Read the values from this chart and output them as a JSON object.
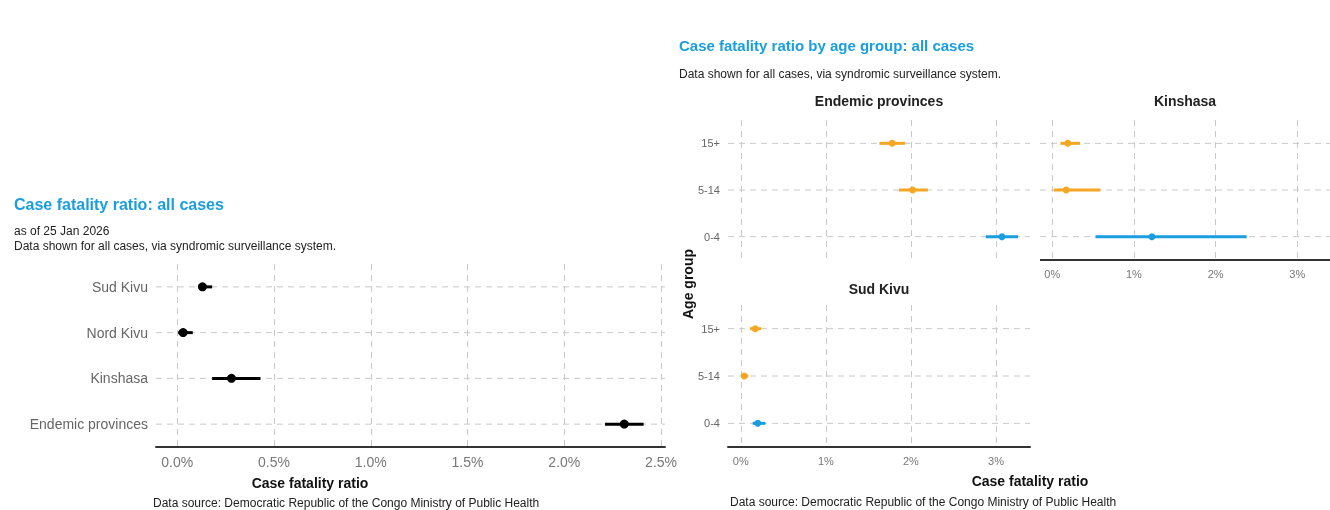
{
  "chart_data": [
    {
      "type": "scatter",
      "orientation": "horizontal",
      "title": "Case fatality ratio: all cases",
      "subtitle": "as of 25 Jan 2026\nData shown for all cases, via syndromic surveillance system.",
      "xlabel": "Case fatality ratio",
      "annotations": [
        "Data source: Democratic Republic of the Congo Ministry of Public Health"
      ],
      "categories": [
        "Sud Kivu",
        "Nord Kivu",
        "Kinshasa",
        "Endemic provinces"
      ],
      "series": [
        {
          "color": "#000000",
          "values": [
            0.13,
            0.03,
            0.28,
            2.31
          ],
          "errors": [
            [
              0.11,
              0.18
            ],
            [
              0.005,
              0.08
            ],
            [
              0.18,
              0.43
            ],
            [
              2.21,
              2.41
            ]
          ]
        }
      ],
      "xlim": [
        -0.11,
        2.52
      ],
      "xticks": [
        {
          "value": 0,
          "label": "0.0%"
        },
        {
          "value": 0.5,
          "label": "0.5%"
        },
        {
          "value": 1,
          "label": "1.0%"
        },
        {
          "value": 1.5,
          "label": "1.5%"
        },
        {
          "value": 2,
          "label": "2.0%"
        },
        {
          "value": 2.5,
          "label": "2.5%"
        }
      ],
      "grid": true,
      "marker": "circle"
    },
    {
      "type": "other",
      "title": "Case fatality ratio by age group: all cases",
      "subtitle": "Data shown for all cases, via syndromic surveillance system."
    },
    {
      "type": "scatter",
      "orientation": "horizontal",
      "title": "Endemic provinces",
      "ylabel": "Age group",
      "categories": [
        "15+",
        "5-14",
        "0-4"
      ],
      "series": [
        {
          "colors": [
            "#f5a623",
            "#f5a623",
            "#1a9ee0"
          ],
          "values": [
            1.78,
            2.02,
            3.07
          ],
          "errors": [
            [
              1.63,
              1.93
            ],
            [
              1.86,
              2.2
            ],
            [
              2.88,
              3.26
            ]
          ]
        }
      ],
      "xlim": [
        -0.15,
        3.4
      ],
      "xticks": [
        0,
        1,
        2,
        3
      ],
      "tick_labels": "y",
      "grid": true,
      "marker": "circle"
    },
    {
      "type": "scatter",
      "orientation": "horizontal",
      "title": "Kinshasa",
      "categories": [
        null,
        null,
        null
      ],
      "series": [
        {
          "colors": [
            "#f5a623",
            "#f5a623",
            "#1a9ee0"
          ],
          "values": [
            0.19,
            0.17,
            1.22
          ],
          "errors": [
            [
              0.1,
              0.34
            ],
            [
              0.02,
              0.59
            ],
            [
              0.53,
              2.38
            ]
          ]
        }
      ],
      "xlim": [
        -0.15,
        3.4
      ],
      "xticks": [
        {
          "value": 0,
          "label": "0%"
        },
        {
          "value": 1,
          "label": "1%"
        },
        {
          "value": 2,
          "label": "2%"
        },
        {
          "value": 3,
          "label": "3%"
        }
      ],
      "tick_labels": "x",
      "grid": true,
      "marker": "circle"
    },
    {
      "type": "scatter",
      "orientation": "horizontal",
      "title": "Sud Kivu",
      "xlabel": "Case fatality ratio",
      "annotations": [
        "Data source: Democratic Republic of the Congo Ministry of Public Health"
      ],
      "categories": [
        "15+",
        "5-14",
        "0-4"
      ],
      "series": [
        {
          "colors": [
            "#f5a623",
            "#f5a623",
            "#1a9ee0"
          ],
          "values": [
            0.17,
            0.04,
            0.2
          ],
          "errors": [
            [
              0.11,
              0.24
            ],
            [
              0.01,
              0.09
            ],
            [
              0.14,
              0.29
            ]
          ]
        }
      ],
      "xlim": [
        -0.15,
        3.4
      ],
      "xticks": [
        {
          "value": 0,
          "label": "0%"
        },
        {
          "value": 1,
          "label": "1%"
        },
        {
          "value": 2,
          "label": "2%"
        },
        {
          "value": 3,
          "label": "3%"
        }
      ],
      "grid": true,
      "marker": "circle"
    }
  ]
}
